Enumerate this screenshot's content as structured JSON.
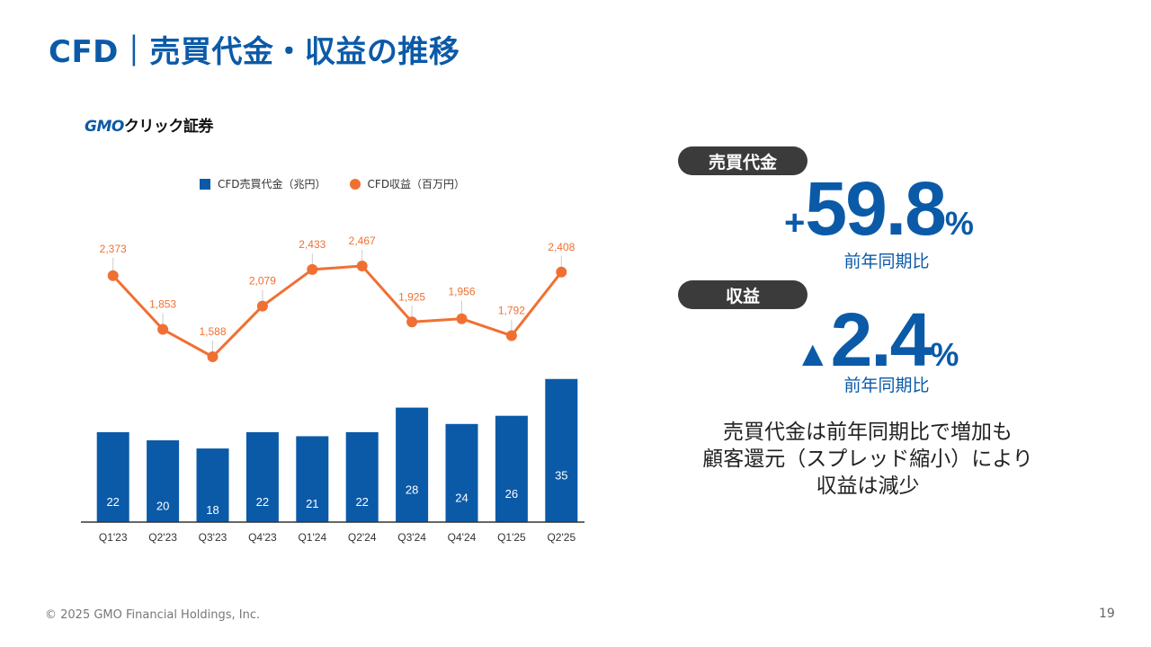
{
  "header": {
    "title": "CFD｜売買代金・収益の推移"
  },
  "logo": {
    "brand": "GMO",
    "name": "クリック証券"
  },
  "chart_data": {
    "type": "bar+line",
    "categories": [
      "Q1'23",
      "Q2'23",
      "Q3'23",
      "Q4'23",
      "Q1'24",
      "Q2'24",
      "Q3'24",
      "Q4'24",
      "Q1'25",
      "Q2'25"
    ],
    "series": [
      {
        "name": "CFD売買代金（兆円）",
        "type": "bar",
        "color": "#0b5aa8",
        "values": [
          22,
          20,
          18,
          22,
          21,
          22,
          28,
          24,
          26,
          35
        ]
      },
      {
        "name": "CFD収益（百万円）",
        "type": "line",
        "color": "#f07033",
        "values": [
          2373,
          1853,
          1588,
          2079,
          2433,
          2467,
          1925,
          1956,
          1792,
          2408
        ],
        "labels": [
          "2,373",
          "1,853",
          "1,588",
          "2,079",
          "2,433",
          "2,467",
          "1,925",
          "1,956",
          "1,792",
          "2,408"
        ]
      }
    ],
    "legend_position": "top",
    "grid": false
  },
  "kpi": {
    "volume": {
      "label": "売買代金",
      "sign": "+",
      "value": "59.8",
      "unit": "%",
      "note": "前年同期比"
    },
    "revenue": {
      "label": "収益",
      "sign": "▲",
      "value": "2.4",
      "unit": "%",
      "note": "前年同期比"
    }
  },
  "comment": {
    "lines": [
      "売買代金は前年同期比で増加も",
      "顧客還元（スプレッド縮小）により",
      "収益は減少"
    ]
  },
  "footer": {
    "copyright": "© 2025 GMO Financial Holdings, Inc.",
    "page": "19"
  }
}
